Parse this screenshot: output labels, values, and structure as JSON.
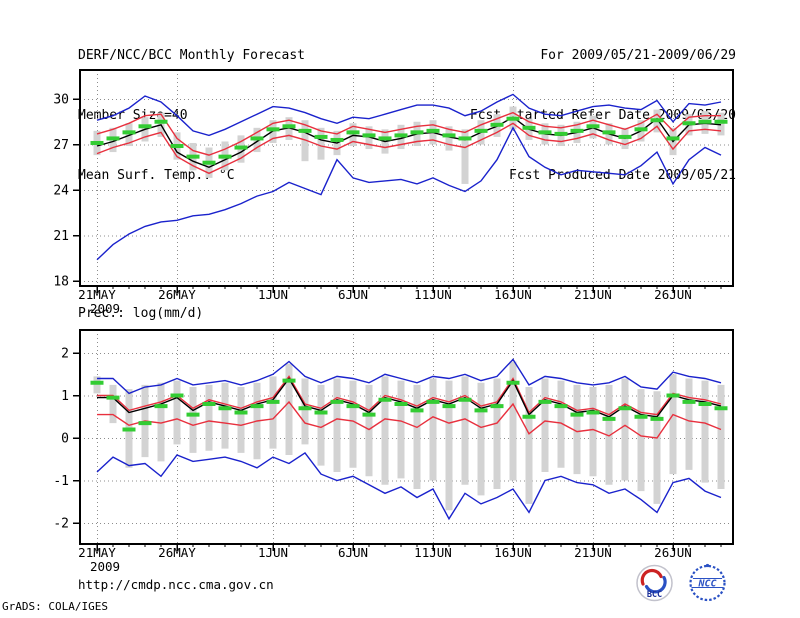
{
  "header": {
    "title": "DERF/NCC/BCC Monthly Forecast",
    "member_size": "Member Size=40",
    "temp_label": "Mean Surf. Temp.: °C",
    "for_period": "For 2009/05/21-2009/06/29",
    "fcst_started": "Fcst Started Refer Date 2009/05/20",
    "fcst_produced": "Fcst Produced Date 2009/05/21"
  },
  "footer": {
    "url": "http://cmdp.ncc.cma.gov.cn",
    "grads_credit": "GrADS: COLA/IGES",
    "logos": [
      {
        "name": "bcc-logo",
        "label": "BCC"
      },
      {
        "name": "ncc-logo",
        "label": "NCC"
      }
    ]
  },
  "colors": {
    "line_blue": "#1a22cc",
    "line_red": "#e8303e",
    "line_black": "#000000",
    "marker_green": "#33cc33",
    "bar_gray": "#d3d3d3",
    "grid_gray": "#8c8c8c",
    "frame_black": "#000000",
    "bcc_navy": "#1a2e99",
    "bcc_red": "#cc2222",
    "ncc_blue": "#2a51c4"
  },
  "chart_data": [
    {
      "type": "line",
      "title": "Mean Surf. Temp.: °C",
      "units": "°C",
      "x_start": "2009/05/21",
      "x_end": "2009/06/29",
      "n_points": 40,
      "ylim": [
        18,
        30
      ],
      "yticks": [
        18,
        21,
        24,
        27,
        30
      ],
      "xtick_labels": [
        "21MAY",
        "26MAY",
        "1JUN",
        "6JUN",
        "11JUN",
        "16JUN",
        "21JUN",
        "26JUN"
      ],
      "xtick_index": [
        0,
        5,
        11,
        16,
        21,
        26,
        31,
        36
      ],
      "year_label": "2009",
      "grid": "dotted",
      "legend_position": "none",
      "series": [
        {
          "name": "ensemble-max",
          "color_key": "line_blue",
          "style": "solid",
          "values": [
            28.6,
            28.9,
            29.4,
            30.2,
            29.8,
            28.9,
            27.9,
            27.6,
            28.0,
            28.5,
            29.0,
            29.5,
            29.4,
            29.1,
            28.7,
            28.4,
            28.8,
            28.7,
            29.0,
            29.3,
            29.6,
            29.6,
            29.4,
            28.9,
            29.2,
            29.8,
            30.3,
            29.4,
            29.0,
            28.9,
            29.2,
            29.5,
            29.6,
            29.4,
            29.3,
            29.9,
            28.5,
            29.7,
            29.6,
            29.8
          ]
        },
        {
          "name": "upper-spread",
          "color_key": "line_red",
          "style": "solid",
          "values": [
            27.7,
            28.0,
            28.4,
            28.9,
            29.0,
            27.4,
            26.6,
            26.3,
            26.7,
            27.2,
            27.8,
            28.4,
            28.6,
            28.3,
            27.9,
            27.7,
            28.2,
            28.0,
            27.8,
            28.0,
            28.2,
            28.3,
            28.0,
            27.8,
            28.3,
            28.7,
            29.1,
            28.5,
            28.2,
            28.1,
            28.3,
            28.6,
            28.3,
            28.0,
            28.4,
            29.0,
            27.9,
            28.8,
            28.9,
            28.9
          ]
        },
        {
          "name": "control",
          "color_key": "line_black",
          "style": "solid",
          "values": [
            26.9,
            27.2,
            27.6,
            28.0,
            28.3,
            26.5,
            25.9,
            25.5,
            26.0,
            26.5,
            27.2,
            27.9,
            28.1,
            27.8,
            27.3,
            27.1,
            27.6,
            27.5,
            27.2,
            27.4,
            27.7,
            27.8,
            27.5,
            27.3,
            27.8,
            28.2,
            28.8,
            28.0,
            27.7,
            27.6,
            27.8,
            28.1,
            27.7,
            27.4,
            27.9,
            28.7,
            27.2,
            28.3,
            28.4,
            28.3
          ]
        },
        {
          "name": "lower-spread",
          "color_key": "line_red",
          "style": "solid",
          "values": [
            26.4,
            26.8,
            27.1,
            27.5,
            27.8,
            26.2,
            25.6,
            25.1,
            25.6,
            26.1,
            26.8,
            27.4,
            27.6,
            27.3,
            26.9,
            26.7,
            27.2,
            27.0,
            26.8,
            27.0,
            27.2,
            27.3,
            27.0,
            26.8,
            27.3,
            27.8,
            28.4,
            27.6,
            27.3,
            27.2,
            27.4,
            27.7,
            27.3,
            27.0,
            27.4,
            28.2,
            26.7,
            27.9,
            28.0,
            27.9
          ]
        },
        {
          "name": "ensemble-min",
          "color_key": "line_blue",
          "style": "solid",
          "values": [
            19.4,
            20.4,
            21.1,
            21.6,
            21.9,
            22.0,
            22.3,
            22.4,
            22.7,
            23.1,
            23.6,
            23.9,
            24.5,
            24.1,
            23.7,
            26.0,
            24.8,
            24.5,
            24.6,
            24.7,
            24.4,
            24.8,
            24.3,
            23.9,
            24.6,
            26.0,
            28.1,
            26.2,
            25.5,
            25.0,
            25.3,
            25.2,
            25.1,
            25.0,
            25.6,
            26.5,
            24.4,
            26.0,
            26.8,
            26.3
          ]
        },
        {
          "name": "ensemble-mean",
          "color_key": "marker_green",
          "style": "dash-marker",
          "values": [
            27.1,
            27.4,
            27.8,
            28.2,
            28.5,
            26.9,
            26.2,
            25.8,
            26.2,
            26.8,
            27.4,
            28.0,
            28.2,
            27.9,
            27.5,
            27.3,
            27.8,
            27.6,
            27.4,
            27.6,
            27.8,
            27.9,
            27.6,
            27.4,
            27.9,
            28.3,
            28.7,
            28.1,
            27.8,
            27.7,
            27.9,
            28.2,
            27.8,
            27.5,
            28.0,
            28.6,
            27.4,
            28.4,
            28.5,
            28.5
          ]
        }
      ],
      "bars": {
        "name": "member-spread",
        "low": [
          26.3,
          26.5,
          26.9,
          27.2,
          27.5,
          26.0,
          25.3,
          24.8,
          25.3,
          25.8,
          26.5,
          27.1,
          27.3,
          25.9,
          26.0,
          26.3,
          26.9,
          26.7,
          26.4,
          26.7,
          26.9,
          27.0,
          26.6,
          24.4,
          27.0,
          27.5,
          28.0,
          27.3,
          27.0,
          26.9,
          27.1,
          27.4,
          27.0,
          26.7,
          27.2,
          27.8,
          26.3,
          27.6,
          27.7,
          27.6
        ],
        "high": [
          27.9,
          28.1,
          28.4,
          28.8,
          29.1,
          27.8,
          27.1,
          26.8,
          27.2,
          27.6,
          28.1,
          28.6,
          28.8,
          28.6,
          28.1,
          27.9,
          28.4,
          28.2,
          28.0,
          28.3,
          28.5,
          28.6,
          28.2,
          28.0,
          28.6,
          29.0,
          29.5,
          28.7,
          28.4,
          28.3,
          28.5,
          28.9,
          28.4,
          28.1,
          28.6,
          29.3,
          28.1,
          29.0,
          29.2,
          29.1
        ]
      }
    },
    {
      "type": "line",
      "title": "Prec.: log(mm/d)",
      "units": "log(mm/d)",
      "x_start": "2009/05/21",
      "x_end": "2009/06/29",
      "n_points": 40,
      "ylim": [
        -2,
        2
      ],
      "yticks": [
        -2,
        -1,
        0,
        1,
        2
      ],
      "xtick_labels": [
        "21MAY",
        "26MAY",
        "1JUN",
        "6JUN",
        "11JUN",
        "16JUN",
        "21JUN",
        "26JUN"
      ],
      "xtick_index": [
        0,
        5,
        11,
        16,
        21,
        26,
        31,
        36
      ],
      "year_label": "2009",
      "grid": "dotted",
      "legend_position": "none",
      "series": [
        {
          "name": "ensemble-max",
          "color_key": "line_blue",
          "style": "solid",
          "values": [
            1.4,
            1.4,
            1.05,
            1.2,
            1.25,
            1.4,
            1.25,
            1.3,
            1.35,
            1.25,
            1.35,
            1.5,
            1.8,
            1.45,
            1.3,
            1.45,
            1.4,
            1.3,
            1.5,
            1.4,
            1.3,
            1.45,
            1.4,
            1.5,
            1.35,
            1.45,
            1.85,
            1.25,
            1.45,
            1.4,
            1.3,
            1.25,
            1.3,
            1.45,
            1.2,
            1.15,
            1.55,
            1.45,
            1.4,
            1.3
          ]
        },
        {
          "name": "upper-spread",
          "color_key": "line_red",
          "style": "solid",
          "values": [
            1.0,
            1.0,
            0.65,
            0.75,
            0.85,
            1.0,
            0.7,
            0.9,
            0.8,
            0.7,
            0.85,
            0.95,
            1.45,
            0.8,
            0.7,
            0.95,
            0.85,
            0.65,
            1.0,
            0.9,
            0.75,
            0.95,
            0.85,
            1.0,
            0.75,
            0.85,
            1.4,
            0.6,
            0.95,
            0.85,
            0.65,
            0.7,
            0.55,
            0.8,
            0.6,
            0.55,
            1.05,
            0.95,
            0.9,
            0.8
          ]
        },
        {
          "name": "control",
          "color_key": "line_black",
          "style": "solid",
          "values": [
            0.95,
            0.95,
            0.6,
            0.7,
            0.8,
            0.95,
            0.65,
            0.85,
            0.75,
            0.65,
            0.8,
            0.9,
            1.4,
            0.75,
            0.65,
            0.9,
            0.8,
            0.6,
            0.95,
            0.85,
            0.7,
            0.9,
            0.8,
            0.95,
            0.7,
            0.8,
            1.35,
            0.55,
            0.9,
            0.8,
            0.6,
            0.65,
            0.5,
            0.75,
            0.55,
            0.5,
            1.0,
            0.9,
            0.85,
            0.75
          ]
        },
        {
          "name": "lower-spread",
          "color_key": "line_red",
          "style": "solid",
          "values": [
            0.55,
            0.55,
            0.3,
            0.4,
            0.35,
            0.45,
            0.3,
            0.4,
            0.35,
            0.3,
            0.4,
            0.45,
            0.85,
            0.35,
            0.25,
            0.45,
            0.4,
            0.2,
            0.45,
            0.4,
            0.25,
            0.5,
            0.35,
            0.45,
            0.25,
            0.35,
            0.8,
            0.1,
            0.4,
            0.35,
            0.15,
            0.2,
            0.05,
            0.3,
            0.05,
            0.0,
            0.55,
            0.4,
            0.35,
            0.2
          ]
        },
        {
          "name": "ensemble-min",
          "color_key": "line_blue",
          "style": "solid",
          "values": [
            -0.8,
            -0.45,
            -0.65,
            -0.6,
            -0.9,
            -0.4,
            -0.55,
            -0.5,
            -0.45,
            -0.55,
            -0.7,
            -0.45,
            -0.6,
            -0.35,
            -0.85,
            -1.0,
            -0.9,
            -1.1,
            -1.3,
            -1.15,
            -1.4,
            -1.2,
            -1.9,
            -1.3,
            -1.55,
            -1.4,
            -1.2,
            -1.75,
            -1.0,
            -0.9,
            -1.05,
            -1.1,
            -1.3,
            -1.2,
            -1.45,
            -1.75,
            -1.05,
            -0.95,
            -1.25,
            -1.4
          ]
        },
        {
          "name": "ensemble-mean",
          "color_key": "marker_green",
          "style": "dash-marker",
          "values": [
            1.3,
            0.95,
            0.2,
            0.35,
            0.75,
            1.0,
            0.55,
            0.8,
            0.7,
            0.6,
            0.75,
            0.85,
            1.35,
            0.7,
            0.6,
            0.85,
            0.75,
            0.55,
            0.9,
            0.8,
            0.65,
            0.85,
            0.75,
            0.9,
            0.65,
            0.75,
            1.3,
            0.5,
            0.85,
            0.75,
            0.55,
            0.6,
            0.45,
            0.7,
            0.5,
            0.45,
            1.0,
            0.85,
            0.8,
            0.7
          ]
        }
      ],
      "bars": {
        "name": "member-spread",
        "low": [
          1.05,
          0.35,
          -0.7,
          -0.45,
          -0.55,
          -0.15,
          -0.35,
          -0.3,
          -0.25,
          -0.35,
          -0.5,
          -0.25,
          -0.4,
          -0.15,
          -0.65,
          -0.8,
          -0.7,
          -0.9,
          -1.1,
          -0.95,
          -1.2,
          -1.0,
          -1.7,
          -1.1,
          -1.35,
          -1.2,
          -1.0,
          -1.55,
          -0.8,
          -0.7,
          -0.85,
          -0.9,
          -1.1,
          -1.0,
          -1.25,
          -1.55,
          -0.85,
          -0.75,
          -1.05,
          -1.2
        ],
        "high": [
          1.45,
          1.25,
          1.15,
          1.25,
          1.3,
          1.35,
          1.2,
          1.25,
          1.3,
          1.2,
          1.3,
          1.45,
          1.75,
          1.4,
          1.25,
          1.4,
          1.35,
          1.25,
          1.45,
          1.35,
          1.25,
          1.4,
          1.35,
          1.45,
          1.3,
          1.4,
          1.8,
          1.2,
          1.4,
          1.35,
          1.25,
          1.2,
          1.25,
          1.4,
          1.15,
          1.1,
          1.5,
          1.4,
          1.35,
          1.25
        ]
      }
    }
  ]
}
